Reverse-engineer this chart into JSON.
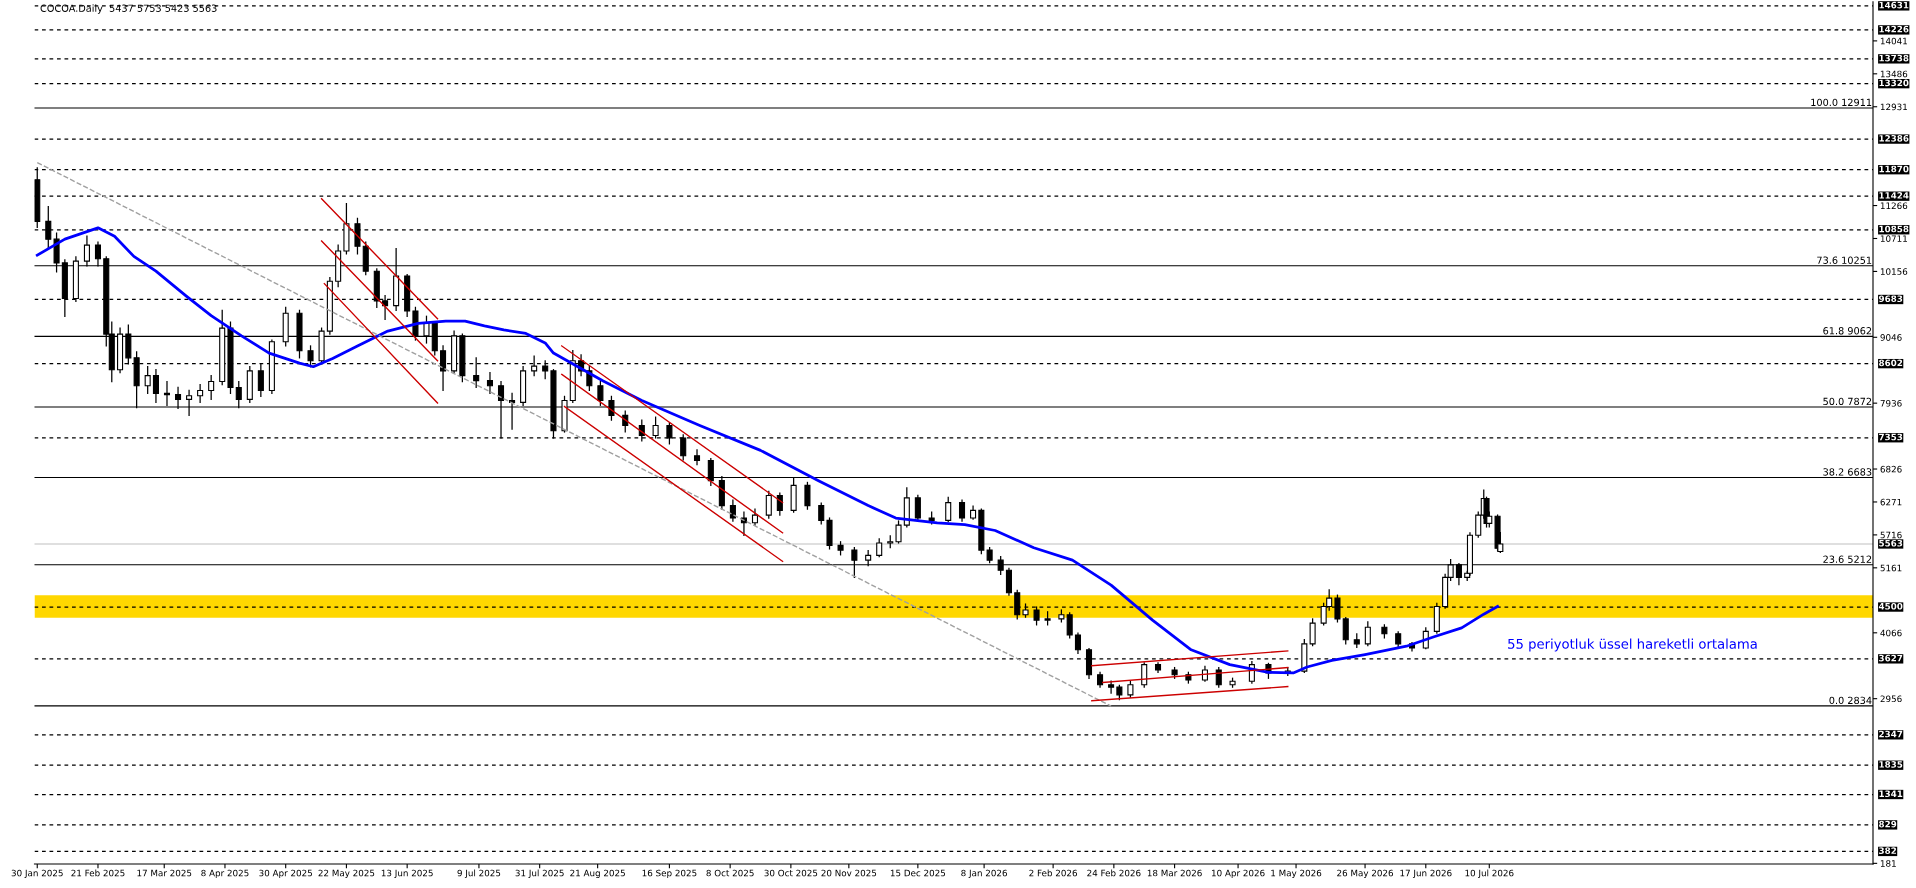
{
  "chart_data": {
    "type": "candlestick",
    "title": "COCOA.Daily  5437 5753 5423 5563",
    "x": [
      "2025-01-30",
      "2025-02-03",
      "2025-02-06",
      "2025-02-09",
      "2025-02-13",
      "2025-02-17",
      "2025-02-21",
      "2025-02-24",
      "2025-02-26",
      "2025-03-01",
      "2025-03-04",
      "2025-03-07",
      "2025-03-11",
      "2025-03-14",
      "2025-03-18",
      "2025-03-22",
      "2025-03-26",
      "2025-03-30",
      "2025-04-03",
      "2025-04-07",
      "2025-04-10",
      "2025-04-13",
      "2025-04-17",
      "2025-04-21",
      "2025-04-25",
      "2025-04-30",
      "2025-05-05",
      "2025-05-09",
      "2025-05-13",
      "2025-05-16",
      "2025-05-19",
      "2025-05-22",
      "2025-05-26",
      "2025-05-29",
      "2025-06-02",
      "2025-06-05",
      "2025-06-09",
      "2025-06-13",
      "2025-06-16",
      "2025-06-20",
      "2025-06-23",
      "2025-06-26",
      "2025-06-30",
      "2025-07-03",
      "2025-07-08",
      "2025-07-13",
      "2025-07-17",
      "2025-07-21",
      "2025-07-25",
      "2025-07-29",
      "2025-08-02",
      "2025-08-05",
      "2025-08-09",
      "2025-08-12",
      "2025-08-15",
      "2025-08-18",
      "2025-08-22",
      "2025-08-26",
      "2025-08-31",
      "2025-09-06",
      "2025-09-11",
      "2025-09-16",
      "2025-09-21",
      "2025-09-26",
      "2025-10-01",
      "2025-10-05",
      "2025-10-09",
      "2025-10-13",
      "2025-10-17",
      "2025-10-22",
      "2025-10-26",
      "2025-10-31",
      "2025-11-05",
      "2025-11-10",
      "2025-11-13",
      "2025-11-17",
      "2025-11-22",
      "2025-11-27",
      "2025-12-01",
      "2025-12-05",
      "2025-12-08",
      "2025-12-11",
      "2025-12-15",
      "2025-12-20",
      "2025-12-26",
      "2025-12-31",
      "2026-01-04",
      "2026-01-07",
      "2026-01-10",
      "2026-01-14",
      "2026-01-17",
      "2026-01-20",
      "2026-01-23",
      "2026-01-27",
      "2026-01-31",
      "2026-02-05",
      "2026-02-08",
      "2026-02-11",
      "2026-02-15",
      "2026-02-19",
      "2026-02-23",
      "2026-02-26",
      "2026-03-02",
      "2026-03-07",
      "2026-03-12",
      "2026-03-18",
      "2026-03-23",
      "2026-03-29",
      "2026-04-03",
      "2026-04-08",
      "2026-04-15",
      "2026-04-21",
      "2026-04-28",
      "2026-05-04",
      "2026-05-07",
      "2026-05-11",
      "2026-05-13",
      "2026-05-16",
      "2026-05-19",
      "2026-05-23",
      "2026-05-27",
      "2026-06-02",
      "2026-06-07",
      "2026-06-12",
      "2026-06-17",
      "2026-06-21",
      "2026-06-24",
      "2026-06-26",
      "2026-06-29",
      "2026-07-02",
      "2026-07-03",
      "2026-07-06",
      "2026-07-08",
      "2026-07-09",
      "2026-07-10",
      "2026-07-13",
      "2026-07-14"
    ],
    "ohlc": [
      [
        11700,
        11900,
        10900,
        11000
      ],
      [
        11000,
        11250,
        10550,
        10700
      ],
      [
        10700,
        10800,
        10150,
        10300
      ],
      [
        10300,
        10350,
        9400,
        9700
      ],
      [
        9700,
        10400,
        9650,
        10330
      ],
      [
        10330,
        10750,
        10250,
        10600
      ],
      [
        10600,
        10650,
        10250,
        10370
      ],
      [
        10370,
        10400,
        8900,
        9100
      ],
      [
        9100,
        9300,
        8300,
        8500
      ],
      [
        8500,
        9200,
        8450,
        9100
      ],
      [
        9100,
        9250,
        8600,
        8700
      ],
      [
        8700,
        8800,
        7860,
        8230
      ],
      [
        8230,
        8550,
        8100,
        8400
      ],
      [
        8400,
        8500,
        7950,
        8100
      ],
      [
        8100,
        8300,
        7900,
        8080
      ],
      [
        8080,
        8200,
        7850,
        8000
      ],
      [
        8000,
        8150,
        7730,
        8060
      ],
      [
        8060,
        8250,
        7950,
        8150
      ],
      [
        8150,
        8400,
        8000,
        8300
      ],
      [
        8300,
        9500,
        8250,
        9200
      ],
      [
        9200,
        9300,
        8100,
        8200
      ],
      [
        8200,
        8300,
        7860,
        8000
      ],
      [
        8000,
        8550,
        7950,
        8480
      ],
      [
        8480,
        8600,
        8050,
        8150
      ],
      [
        8150,
        9000,
        8100,
        8970
      ],
      [
        8970,
        9550,
        8900,
        9450
      ],
      [
        9450,
        9500,
        8700,
        8820
      ],
      [
        8820,
        8900,
        8550,
        8650
      ],
      [
        8650,
        9200,
        8600,
        9150
      ],
      [
        9150,
        10050,
        9100,
        9990
      ],
      [
        9990,
        10600,
        9900,
        10500
      ],
      [
        10500,
        11300,
        10450,
        10960
      ],
      [
        10960,
        11050,
        10450,
        10580
      ],
      [
        10580,
        10650,
        10100,
        10160
      ],
      [
        10160,
        10200,
        9550,
        9660
      ],
      [
        9660,
        9750,
        9350,
        9580
      ],
      [
        9580,
        10540,
        9500,
        10080
      ],
      [
        10080,
        10100,
        9400,
        9490
      ],
      [
        9490,
        9550,
        9000,
        9070
      ],
      [
        9070,
        9400,
        8950,
        9280
      ],
      [
        9280,
        9300,
        8750,
        8820
      ],
      [
        8820,
        8900,
        8150,
        8480
      ],
      [
        8480,
        9150,
        8450,
        9070
      ],
      [
        9070,
        9100,
        8300,
        8400
      ],
      [
        8400,
        8700,
        8200,
        8315
      ],
      [
        8315,
        8450,
        8100,
        8230
      ],
      [
        8230,
        8300,
        7350,
        7980
      ],
      [
        7980,
        8100,
        7500,
        7950
      ],
      [
        7950,
        8550,
        7900,
        8480
      ],
      [
        8480,
        8730,
        8400,
        8560
      ],
      [
        8560,
        8650,
        8350,
        8480
      ],
      [
        8480,
        8500,
        7350,
        7470
      ],
      [
        7470,
        8050,
        7450,
        7980
      ],
      [
        7980,
        8820,
        7950,
        8650
      ],
      [
        8650,
        8750,
        8400,
        8480
      ],
      [
        8480,
        8550,
        8150,
        8230
      ],
      [
        8230,
        8300,
        7900,
        7980
      ],
      [
        7980,
        8050,
        7650,
        7730
      ],
      [
        7730,
        7800,
        7450,
        7560
      ],
      [
        7560,
        7650,
        7300,
        7390
      ],
      [
        7390,
        7700,
        7350,
        7560
      ],
      [
        7560,
        7600,
        7250,
        7350
      ],
      [
        7350,
        7400,
        6980,
        7050
      ],
      [
        7050,
        7150,
        6900,
        6970
      ],
      [
        6970,
        7000,
        6550,
        6630
      ],
      [
        6630,
        6700,
        6150,
        6210
      ],
      [
        6210,
        6300,
        5950,
        6000
      ],
      [
        6000,
        6100,
        5710,
        5920
      ],
      [
        5920,
        6150,
        5880,
        6050
      ],
      [
        6050,
        6450,
        6000,
        6380
      ],
      [
        6380,
        6420,
        6050,
        6130
      ],
      [
        6130,
        6680,
        6100,
        6550
      ],
      [
        6550,
        6600,
        6150,
        6210
      ],
      [
        6210,
        6250,
        5900,
        5960
      ],
      [
        5960,
        6000,
        5480,
        5540
      ],
      [
        5540,
        5600,
        5380,
        5460
      ],
      [
        5460,
        5500,
        5000,
        5290
      ],
      [
        5290,
        5450,
        5200,
        5370
      ],
      [
        5370,
        5650,
        5350,
        5580
      ],
      [
        5580,
        5700,
        5500,
        5600
      ],
      [
        5600,
        5950,
        5580,
        5880
      ],
      [
        5880,
        6510,
        5850,
        6340
      ],
      [
        6340,
        6380,
        5950,
        6000
      ],
      [
        6000,
        6100,
        5900,
        5960
      ],
      [
        5960,
        6350,
        5940,
        6260
      ],
      [
        6260,
        6300,
        5950,
        6000
      ],
      [
        6000,
        6200,
        5980,
        6130
      ],
      [
        6130,
        6150,
        5400,
        5460
      ],
      [
        5460,
        5500,
        5250,
        5290
      ],
      [
        5290,
        5350,
        5050,
        5120
      ],
      [
        5120,
        5150,
        4700,
        4740
      ],
      [
        4740,
        4780,
        4300,
        4370
      ],
      [
        4370,
        4550,
        4330,
        4450
      ],
      [
        4450,
        4500,
        4200,
        4280
      ],
      [
        4280,
        4420,
        4200,
        4300
      ],
      [
        4300,
        4450,
        4250,
        4370
      ],
      [
        4370,
        4400,
        3980,
        4030
      ],
      [
        4030,
        4060,
        3720,
        3780
      ],
      [
        3780,
        3800,
        3300,
        3360
      ],
      [
        3360,
        3400,
        3150,
        3190
      ],
      [
        3190,
        3250,
        3050,
        3150
      ],
      [
        3150,
        3180,
        2940,
        3020
      ],
      [
        3020,
        3250,
        2980,
        3190
      ],
      [
        3190,
        3560,
        3150,
        3530
      ],
      [
        3530,
        3560,
        3400,
        3440
      ],
      [
        3440,
        3480,
        3300,
        3360
      ],
      [
        3360,
        3400,
        3220,
        3270
      ],
      [
        3270,
        3500,
        3250,
        3440
      ],
      [
        3440,
        3480,
        3150,
        3190
      ],
      [
        3190,
        3300,
        3150,
        3250
      ],
      [
        3250,
        3580,
        3220,
        3530
      ],
      [
        3530,
        3550,
        3300,
        3390
      ],
      [
        3390,
        3480,
        3350,
        3420
      ],
      [
        3420,
        3950,
        3400,
        3880
      ],
      [
        3880,
        4300,
        3850,
        4230
      ],
      [
        4230,
        4560,
        4200,
        4510
      ],
      [
        4510,
        4790,
        4450,
        4650
      ],
      [
        4650,
        4700,
        4250,
        4300
      ],
      [
        4300,
        4320,
        3880,
        3950
      ],
      [
        3950,
        4050,
        3820,
        3880
      ],
      [
        3880,
        4250,
        3850,
        4160
      ],
      [
        4160,
        4200,
        3980,
        4050
      ],
      [
        4050,
        4080,
        3830,
        3880
      ],
      [
        3880,
        3900,
        3760,
        3810
      ],
      [
        3810,
        4150,
        3800,
        4090
      ],
      [
        4090,
        4560,
        4060,
        4510
      ],
      [
        4510,
        5050,
        4480,
        5000
      ],
      [
        5000,
        5300,
        4950,
        5210
      ],
      [
        5210,
        5230,
        4880,
        5000
      ],
      [
        5000,
        5100,
        4950,
        5070
      ],
      [
        5070,
        5750,
        5040,
        5710
      ],
      [
        5710,
        6100,
        5680,
        6050
      ],
      [
        6050,
        6470,
        6000,
        6330
      ],
      [
        6330,
        6350,
        5850,
        5910
      ],
      [
        5910,
        6100,
        5850,
        6030
      ],
      [
        6030,
        6050,
        5450,
        5490
      ],
      [
        5437,
        5753,
        5423,
        5563
      ]
    ],
    "series": [
      {
        "type": "line",
        "color": "#0000ff",
        "line_style": "solid",
        "x": [
          "2025-01-30",
          "2025-02-09",
          "2025-02-21",
          "2025-02-27",
          "2025-03-06",
          "2025-03-14",
          "2025-03-25",
          "2025-04-03",
          "2025-04-14",
          "2025-04-24",
          "2025-05-05",
          "2025-05-10",
          "2025-05-17",
          "2025-05-26",
          "2025-06-06",
          "2025-06-17",
          "2025-06-27",
          "2025-07-04",
          "2025-07-11",
          "2025-07-18",
          "2025-07-26",
          "2025-08-02",
          "2025-08-05",
          "2025-08-23",
          "2025-09-06",
          "2025-09-27",
          "2025-10-19",
          "2025-11-09",
          "2025-11-27",
          "2025-12-07",
          "2025-12-22",
          "2026-01-01",
          "2026-01-12",
          "2026-01-26",
          "2026-02-09",
          "2026-02-23",
          "2026-03-10",
          "2026-03-24",
          "2026-04-07",
          "2026-04-21",
          "2026-04-30",
          "2026-05-05",
          "2026-05-14",
          "2026-05-26",
          "2026-06-10",
          "2026-06-20",
          "2026-06-30",
          "2026-07-08",
          "2026-07-13"
        ],
        "values": [
          10430,
          10700,
          10890,
          10750,
          10410,
          10160,
          9740,
          9410,
          9070,
          8780,
          8610,
          8550,
          8690,
          8900,
          9150,
          9280,
          9320,
          9320,
          9240,
          9170,
          9110,
          8950,
          8780,
          8310,
          7980,
          7560,
          7140,
          6630,
          6210,
          6000,
          5920,
          5890,
          5790,
          5500,
          5290,
          4870,
          4280,
          3780,
          3530,
          3400,
          3390,
          3490,
          3600,
          3700,
          3840,
          4000,
          4150,
          4380,
          4510
        ]
      },
      {
        "type": "line",
        "color": "#a0a0a0",
        "line_style": "dashed",
        "x": [
          "2025-01-30",
          "2026-02-23"
        ],
        "values": [
          11990,
          2830
        ]
      },
      {
        "type": "line",
        "color": "#cc0000",
        "line_style": "solid",
        "x": [
          "2025-05-13",
          "2025-06-24"
        ],
        "values": [
          11380,
          9360
        ]
      },
      {
        "type": "line",
        "color": "#cc0000",
        "line_style": "solid",
        "x": [
          "2025-05-13",
          "2025-06-24"
        ],
        "values": [
          10670,
          8650
        ]
      },
      {
        "type": "line",
        "color": "#cc0000",
        "line_style": "solid",
        "x": [
          "2025-05-14",
          "2025-06-24"
        ],
        "values": [
          9950,
          7940
        ]
      },
      {
        "type": "line",
        "color": "#cc0000",
        "line_style": "solid",
        "x": [
          "2025-08-08",
          "2025-10-27"
        ],
        "values": [
          8900,
          6260
        ]
      },
      {
        "type": "line",
        "color": "#cc0000",
        "line_style": "solid",
        "x": [
          "2025-08-08",
          "2025-10-27"
        ],
        "values": [
          8420,
          5750
        ]
      },
      {
        "type": "line",
        "color": "#cc0000",
        "line_style": "solid",
        "x": [
          "2025-08-09",
          "2025-10-27"
        ],
        "values": [
          7880,
          5270
        ]
      },
      {
        "type": "line",
        "color": "#cc0000",
        "line_style": "solid",
        "x": [
          "2026-02-16",
          "2026-04-28"
        ],
        "values": [
          3510,
          3760
        ]
      },
      {
        "type": "line",
        "color": "#cc0000",
        "line_style": "solid",
        "x": [
          "2026-02-20",
          "2026-04-28"
        ],
        "values": [
          3230,
          3480
        ]
      },
      {
        "type": "line",
        "color": "#cc0000",
        "line_style": "solid",
        "x": [
          "2026-02-16",
          "2026-04-28"
        ],
        "values": [
          2920,
          3160
        ]
      }
    ],
    "xlim": [
      "2025-01-29",
      "2026-11-26"
    ],
    "xticks": [
      {
        "value": "2025-01-30",
        "label": "30 Jan 2025"
      },
      {
        "value": "2025-02-21",
        "label": "21 Feb 2025"
      },
      {
        "value": "2025-03-17",
        "label": "17 Mar 2025"
      },
      {
        "value": "2025-04-08",
        "label": "8 Apr 2025"
      },
      {
        "value": "2025-04-30",
        "label": "30 Apr 2025"
      },
      {
        "value": "2025-05-22",
        "label": "22 May 2025"
      },
      {
        "value": "2025-06-13",
        "label": "13 Jun 2025"
      },
      {
        "value": "2025-07-09",
        "label": "9 Jul 2025"
      },
      {
        "value": "2025-07-31",
        "label": "31 Jul 2025"
      },
      {
        "value": "2025-08-21",
        "label": "21 Aug 2025"
      },
      {
        "value": "2025-09-16",
        "label": "16 Sep 2025"
      },
      {
        "value": "2025-10-08",
        "label": "8 Oct 2025"
      },
      {
        "value": "2025-10-30",
        "label": "30 Oct 2025"
      },
      {
        "value": "2025-11-20",
        "label": "20 Nov 2025"
      },
      {
        "value": "2025-12-15",
        "label": "15 Dec 2025"
      },
      {
        "value": "2026-01-08",
        "label": "8 Jan 2026"
      },
      {
        "value": "2026-02-02",
        "label": "2 Feb 2026"
      },
      {
        "value": "2026-02-24",
        "label": "24 Feb 2026"
      },
      {
        "value": "2026-03-18",
        "label": "18 Mar 2026"
      },
      {
        "value": "2026-04-10",
        "label": "10 Apr 2026"
      },
      {
        "value": "2026-05-01",
        "label": "1 May 2026"
      },
      {
        "value": "2026-05-26",
        "label": "26 May 2026"
      },
      {
        "value": "2026-06-17",
        "label": "17 Jun 2026"
      },
      {
        "value": "2026-07-10",
        "label": "10 Jul 2026"
      }
    ],
    "ylim": [
      170,
      14700
    ],
    "yticks": [
      181,
      2956,
      4066,
      5161,
      5716,
      6271,
      6826,
      7936,
      9046,
      10156,
      10711,
      11266,
      12931,
      13486,
      14041
    ],
    "ref_lines": [
      {
        "axis": "y",
        "value": 14631,
        "label": "14631",
        "color": "#000000",
        "line_style": "dashed"
      },
      {
        "axis": "y",
        "value": 14226,
        "label": "14226",
        "color": "#000000",
        "line_style": "dashed"
      },
      {
        "axis": "y",
        "value": 13738,
        "label": "13738",
        "color": "#000000",
        "line_style": "dashed"
      },
      {
        "axis": "y",
        "value": 13320,
        "label": "13320",
        "color": "#000000",
        "line_style": "dashed"
      },
      {
        "axis": "y",
        "value": 12911,
        "label": "100.0 12911",
        "color": "#000000",
        "line_style": "solid"
      },
      {
        "axis": "y",
        "value": 12386,
        "label": "12386",
        "color": "#000000",
        "line_style": "dashed"
      },
      {
        "axis": "y",
        "value": 11870,
        "label": "11870",
        "color": "#000000",
        "line_style": "dashed"
      },
      {
        "axis": "y",
        "value": 11424,
        "label": "11424",
        "color": "#000000",
        "line_style": "dashed"
      },
      {
        "axis": "y",
        "value": 10858,
        "label": "10858",
        "color": "#000000",
        "line_style": "dashed"
      },
      {
        "axis": "y",
        "value": 10251,
        "label": "73.6 10251",
        "color": "#000000",
        "line_style": "solid"
      },
      {
        "axis": "y",
        "value": 9683,
        "label": "9683",
        "color": "#000000",
        "line_style": "dashed"
      },
      {
        "axis": "y",
        "value": 9062,
        "label": "61.8 9062",
        "color": "#000000",
        "line_style": "solid"
      },
      {
        "axis": "y",
        "value": 8602,
        "label": "8602",
        "color": "#000000",
        "line_style": "dashed"
      },
      {
        "axis": "y",
        "value": 7872,
        "label": "50.0 7872",
        "color": "#000000",
        "line_style": "solid"
      },
      {
        "axis": "y",
        "value": 7353,
        "label": "7353",
        "color": "#000000",
        "line_style": "dashed"
      },
      {
        "axis": "y",
        "value": 6683,
        "label": "38.2 6683",
        "color": "#000000",
        "line_style": "solid"
      },
      {
        "axis": "y",
        "value": 5563,
        "label": "5563",
        "color": "#c0c0c0",
        "line_style": "solid"
      },
      {
        "axis": "y",
        "value": 5212,
        "label": "23.6 5212",
        "color": "#000000",
        "line_style": "solid"
      },
      {
        "axis": "y",
        "value": 4500,
        "label": "4500",
        "color": "#000000",
        "line_style": "dashed"
      },
      {
        "axis": "y",
        "value": 3627,
        "label": "3627",
        "color": "#000000",
        "line_style": "dashed"
      },
      {
        "axis": "y",
        "value": 2834,
        "label": "0.0 2834",
        "color": "#000000",
        "line_style": "solid"
      },
      {
        "axis": "y",
        "value": 2347,
        "label": "2347",
        "color": "#000000",
        "line_style": "dashed"
      },
      {
        "axis": "y",
        "value": 1835,
        "label": "1835",
        "color": "#000000",
        "line_style": "dashed"
      },
      {
        "axis": "y",
        "value": 1341,
        "label": "1341",
        "color": "#000000",
        "line_style": "dashed"
      },
      {
        "axis": "y",
        "value": 829,
        "label": "829",
        "color": "#000000",
        "line_style": "dashed"
      },
      {
        "axis": "y",
        "value": 382,
        "label": "382",
        "color": "#000000",
        "line_style": "dashed"
      }
    ],
    "bands": [
      {
        "axis": "y",
        "from": 4320,
        "to": 4700,
        "color": "#ffd700"
      }
    ],
    "annotations": [
      "55 periyotluk üssel hareketli ortalama"
    ]
  }
}
